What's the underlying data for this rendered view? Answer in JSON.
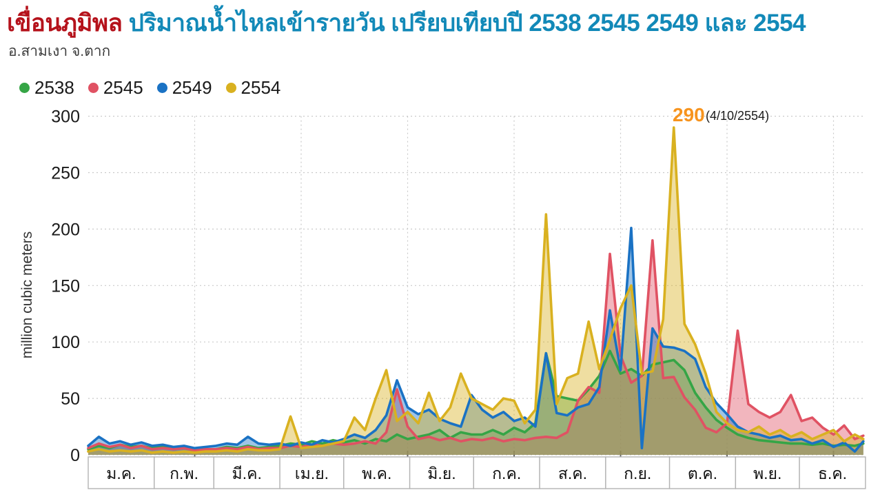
{
  "header": {
    "title_dam": "เขื่อนภูมิพล",
    "title_rest": "ปริมาณน้ำไหลเข้ารายวัน เปรียบเทียบปี 2538 2545 2549 และ 2554",
    "subtitle": "อ.สามเงา จ.ตาก"
  },
  "legend": [
    {
      "label": "2538",
      "color": "#35a546"
    },
    {
      "label": "2545",
      "color": "#e05263"
    },
    {
      "label": "2549",
      "color": "#1a72c4"
    },
    {
      "label": "2554",
      "color": "#d9b120"
    }
  ],
  "annotation": {
    "value": "290",
    "date": "(4/10/2554)",
    "value_color": "#f7941e",
    "date_color": "#1a1a1a"
  },
  "colors": {
    "grid": "#c9c9c9",
    "axis_text": "#1a1a1a",
    "month_border": "#b3b3b3",
    "tick_mark": "#666666"
  },
  "chart_data": {
    "type": "area",
    "title": "เขื่อนภูมิพล ปริมาณน้ำไหลเข้ารายวัน เปรียบเทียบปี 2538 2545 2549 และ 2554",
    "ylabel": "million cubic meters",
    "xlabel": "",
    "ylim": [
      0,
      300
    ],
    "y_ticks": [
      0,
      50,
      100,
      150,
      200,
      250,
      300
    ],
    "grid": "dotted",
    "legend_position": "top-left",
    "x_unit": "day of year",
    "x_gridline_days": [
      51,
      101,
      151,
      201,
      251,
      301,
      351
    ],
    "months": [
      "ม.ค.",
      "ก.พ.",
      "มี.ค.",
      "เม.ย.",
      "พ.ค.",
      "มิ.ย.",
      "ก.ค.",
      "ส.ค.",
      "ก.ย.",
      "ต.ค.",
      "พ.ย.",
      "ธ.ค."
    ],
    "month_start_days": [
      1,
      32,
      60,
      91,
      121,
      152,
      182,
      213,
      244,
      274,
      305,
      335,
      366
    ],
    "peak_annotation": {
      "series": "2554",
      "value": 290,
      "day": 277,
      "label": "290 (4/10/2554)"
    },
    "x": [
      1,
      6,
      11,
      16,
      21,
      26,
      31,
      36,
      41,
      46,
      51,
      56,
      61,
      66,
      71,
      76,
      81,
      86,
      91,
      96,
      101,
      106,
      111,
      116,
      121,
      126,
      131,
      136,
      141,
      146,
      151,
      156,
      161,
      166,
      171,
      176,
      181,
      186,
      191,
      196,
      201,
      206,
      211,
      216,
      221,
      226,
      231,
      236,
      241,
      246,
      251,
      256,
      261,
      266,
      271,
      276,
      281,
      286,
      291,
      296,
      301,
      306,
      311,
      316,
      321,
      326,
      331,
      336,
      341,
      346,
      351,
      356,
      361,
      365
    ],
    "series": [
      {
        "name": "2538",
        "color": "#35a546",
        "values": [
          5,
          8,
          6,
          9,
          7,
          8,
          6,
          7,
          5,
          6,
          4,
          5,
          5,
          7,
          6,
          8,
          6,
          7,
          8,
          10,
          9,
          12,
          10,
          13,
          11,
          13,
          10,
          14,
          12,
          18,
          14,
          16,
          18,
          22,
          15,
          20,
          18,
          18,
          22,
          18,
          24,
          20,
          28,
          90,
          52,
          50,
          48,
          58,
          70,
          92,
          72,
          76,
          70,
          80,
          82,
          84,
          75,
          55,
          42,
          31,
          24,
          18,
          15,
          13,
          12,
          11,
          10,
          10,
          9,
          10,
          8,
          9,
          8,
          10
        ]
      },
      {
        "name": "2545",
        "color": "#e05263",
        "values": [
          6,
          10,
          7,
          9,
          6,
          8,
          5,
          6,
          5,
          6,
          4,
          5,
          5,
          6,
          5,
          7,
          5,
          6,
          6,
          8,
          7,
          9,
          8,
          10,
          9,
          10,
          12,
          10,
          20,
          58,
          25,
          14,
          16,
          13,
          15,
          12,
          14,
          13,
          15,
          12,
          14,
          13,
          15,
          16,
          15,
          20,
          48,
          60,
          55,
          178,
          88,
          64,
          70,
          190,
          68,
          69,
          51,
          40,
          24,
          20,
          28,
          110,
          45,
          38,
          33,
          38,
          53,
          30,
          33,
          24,
          18,
          26,
          14,
          17
        ]
      },
      {
        "name": "2549",
        "color": "#1a72c4",
        "values": [
          8,
          16,
          10,
          12,
          9,
          11,
          8,
          9,
          7,
          8,
          6,
          7,
          8,
          10,
          9,
          16,
          10,
          9,
          10,
          8,
          11,
          9,
          13,
          11,
          14,
          18,
          15,
          22,
          35,
          66,
          42,
          36,
          40,
          32,
          28,
          25,
          53,
          40,
          33,
          38,
          30,
          33,
          25,
          90,
          37,
          35,
          42,
          45,
          60,
          128,
          75,
          201,
          6,
          112,
          96,
          95,
          92,
          85,
          60,
          46,
          36,
          25,
          20,
          18,
          15,
          17,
          13,
          14,
          10,
          13,
          7,
          11,
          3,
          12
        ]
      },
      {
        "name": "2554",
        "color": "#d9b120",
        "values": [
          3,
          5,
          3,
          4,
          3,
          4,
          2,
          3,
          2,
          3,
          2,
          3,
          3,
          4,
          3,
          5,
          4,
          4,
          5,
          34,
          6,
          7,
          8,
          10,
          12,
          33,
          22,
          50,
          75,
          30,
          38,
          28,
          55,
          30,
          42,
          72,
          50,
          45,
          40,
          50,
          48,
          28,
          40,
          213,
          45,
          68,
          72,
          118,
          76,
          102,
          130,
          150,
          72,
          74,
          120,
          290,
          116,
          98,
          72,
          38,
          28,
          22,
          20,
          25,
          18,
          22,
          16,
          20,
          14,
          18,
          22,
          12,
          18,
          14
        ]
      }
    ]
  }
}
